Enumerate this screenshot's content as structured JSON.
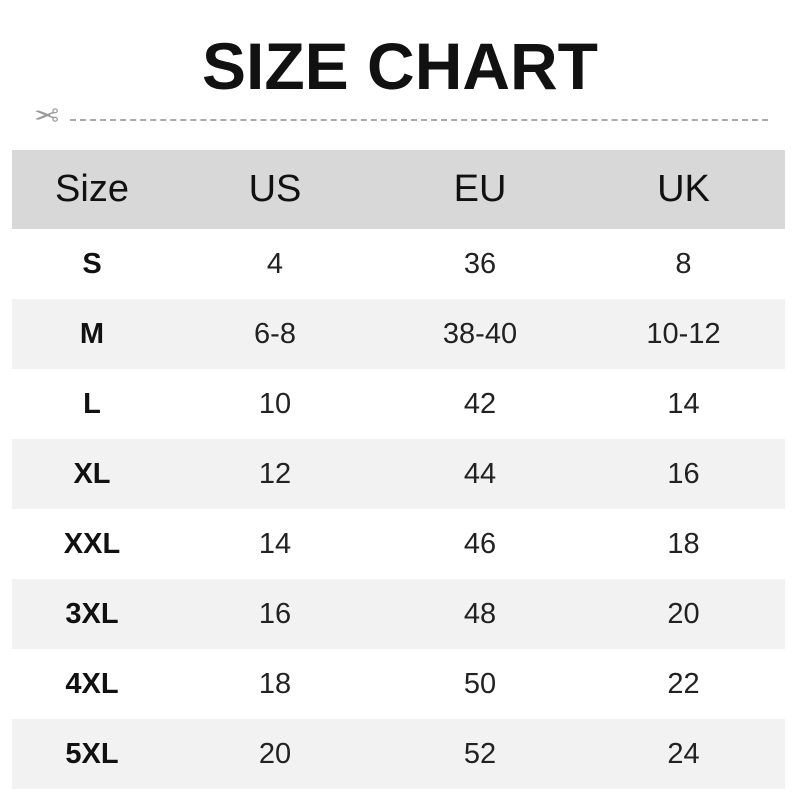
{
  "title": "SIZE CHART",
  "icons": {
    "cut_line": "scissors-icon"
  },
  "colors": {
    "header_bg": "#d8d8d8",
    "alt_row_bg": "#f2f2f2",
    "text": "#111111"
  },
  "table": {
    "headers": [
      "Size",
      "US",
      "EU",
      "UK"
    ],
    "rows": [
      [
        "S",
        "4",
        "36",
        "8"
      ],
      [
        "M",
        "6-8",
        "38-40",
        "10-12"
      ],
      [
        "L",
        "10",
        "42",
        "14"
      ],
      [
        "XL",
        "12",
        "44",
        "16"
      ],
      [
        "XXL",
        "14",
        "46",
        "18"
      ],
      [
        "3XL",
        "16",
        "48",
        "20"
      ],
      [
        "4XL",
        "18",
        "50",
        "22"
      ],
      [
        "5XL",
        "20",
        "52",
        "24"
      ]
    ]
  }
}
